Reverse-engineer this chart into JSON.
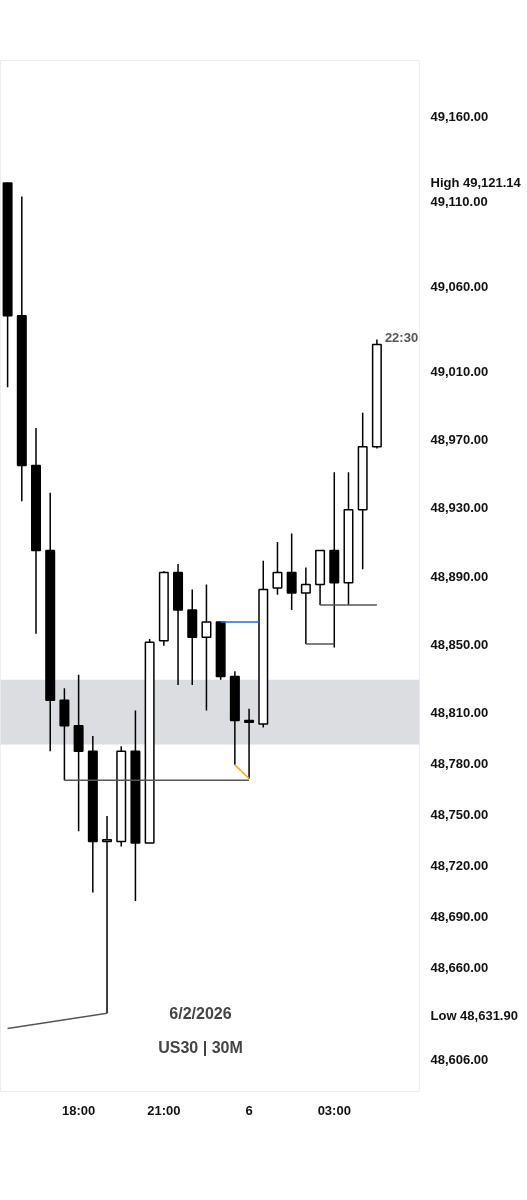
{
  "chart_data": {
    "type": "candlestick",
    "x": [
      "2026-02-05T15:30",
      "2026-02-05T16:00",
      "2026-02-05T16:30",
      "2026-02-05T17:00",
      "2026-02-05T17:30",
      "2026-02-05T18:00",
      "2026-02-05T18:30",
      "2026-02-05T19:00",
      "2026-02-05T19:30",
      "2026-02-05T20:00",
      "2026-02-05T20:30",
      "2026-02-05T21:00",
      "2026-02-05T21:30",
      "2026-02-05T22:00",
      "2026-02-05T22:30",
      "2026-02-05T23:00",
      "2026-02-05T23:30",
      "2026-02-06T00:00",
      "2026-02-06T00:30",
      "2026-02-06T01:00",
      "2026-02-06T01:30",
      "2026-02-06T02:00",
      "2026-02-06T02:30",
      "2026-02-06T03:00",
      "2026-02-06T03:30",
      "2026-02-06T04:00",
      "2026-02-06T04:30"
    ],
    "ohlc": [
      [
        49121,
        49121,
        49001,
        49043
      ],
      [
        49043,
        49113,
        48934,
        48955
      ],
      [
        48955,
        48977,
        48856,
        48905
      ],
      [
        48905,
        48939,
        48787,
        48817
      ],
      [
        48817,
        48824,
        48770,
        48802
      ],
      [
        48802,
        48832,
        48740,
        48787
      ],
      [
        48787,
        48796,
        48704,
        48734
      ],
      [
        48734,
        48749,
        48633,
        48735
      ],
      [
        48734,
        48790,
        48731,
        48787
      ],
      [
        48787,
        48811,
        48699,
        48733
      ],
      [
        48733,
        48853,
        48733,
        48851
      ],
      [
        48852,
        48893,
        48849,
        48892
      ],
      [
        48892,
        48897,
        48826,
        48870
      ],
      [
        48870,
        48882,
        48826,
        48854
      ],
      [
        48854,
        48885,
        48811,
        48863
      ],
      [
        48863,
        48863,
        48829,
        48831
      ],
      [
        48831,
        48834,
        48779,
        48805
      ],
      [
        48805,
        48812,
        48771,
        48804
      ],
      [
        48803,
        48899,
        48801,
        48882
      ],
      [
        48883,
        48910,
        48879,
        48892
      ],
      [
        48892,
        48915,
        48870,
        48880
      ],
      [
        48880,
        48895,
        48850,
        48885
      ],
      [
        48885,
        48905,
        48873,
        48905
      ],
      [
        48905,
        48951,
        48848,
        48886
      ],
      [
        48886,
        48951,
        48873,
        48929
      ],
      [
        48929,
        48986,
        48894,
        48966
      ],
      [
        48966,
        49029,
        48965,
        49026
      ]
    ],
    "series": [
      {
        "type": "line",
        "x": [
          "2026-02-05T15:30",
          "2026-02-05T19:00"
        ],
        "values": [
          48624,
          48633
        ],
        "color": "#555555"
      },
      {
        "type": "line",
        "x": [
          "2026-02-05T17:30",
          "2026-02-06T00:00"
        ],
        "values": [
          48770,
          48770
        ],
        "color": "#555555"
      },
      {
        "type": "line",
        "x": [
          "2026-02-05T23:00",
          "2026-02-06T00:20"
        ],
        "values": [
          48863,
          48863
        ],
        "color": "#2962ff"
      },
      {
        "type": "line",
        "x": [
          "2026-02-05T23:30",
          "2026-02-06T00:00"
        ],
        "values": [
          48779,
          48771
        ],
        "color": "#f5a623"
      },
      {
        "type": "line",
        "x": [
          "2026-02-06T02:00",
          "2026-02-06T03:00"
        ],
        "values": [
          48850,
          48850
        ],
        "color": "#555555"
      },
      {
        "type": "line",
        "x": [
          "2026-02-06T02:30",
          "2026-02-06T04:30"
        ],
        "values": [
          48873,
          48873
        ],
        "color": "#555555"
      }
    ],
    "bands": [
      {
        "axis": "y",
        "from": 48791,
        "to": 48829,
        "color": "#dcdde1"
      }
    ],
    "xlim": [
      "2026-02-05T15:15",
      "2026-02-06T06:00"
    ],
    "ylim": [
      48587,
      49193
    ],
    "xticks": [
      {
        "value": "2026-02-05T18:00",
        "label": "18:00"
      },
      {
        "value": "2026-02-05T21:00",
        "label": "21:00"
      },
      {
        "value": "2026-02-06T00:00",
        "label": "6"
      },
      {
        "value": "2026-02-06T03:00",
        "label": "03:00"
      }
    ],
    "yticks": [
      {
        "value": 49160,
        "label": "49,160.00"
      },
      {
        "value": 49121.14,
        "label": "High  49,121.14"
      },
      {
        "value": 49110,
        "label": "49,110.00"
      },
      {
        "value": 49060,
        "label": "49,060.00"
      },
      {
        "value": 49010,
        "label": "49,010.00"
      },
      {
        "value": 48970,
        "label": "48,970.00"
      },
      {
        "value": 48930,
        "label": "48,930.00"
      },
      {
        "value": 48890,
        "label": "48,890.00"
      },
      {
        "value": 48850,
        "label": "48,850.00"
      },
      {
        "value": 48810,
        "label": "48,810.00"
      },
      {
        "value": 48780,
        "label": "48,780.00"
      },
      {
        "value": 48750,
        "label": "48,750.00"
      },
      {
        "value": 48720,
        "label": "48,720.00"
      },
      {
        "value": 48690,
        "label": "48,690.00"
      },
      {
        "value": 48660,
        "label": "48,660.00"
      },
      {
        "value": 48631.9,
        "label": "Low  48,631.90"
      },
      {
        "value": 48606,
        "label": "48,606.00"
      }
    ],
    "annotations": [
      {
        "text": "22:30",
        "x": "2026-02-06T04:30",
        "y": 49026
      },
      "6/2/2026",
      "US30 | 30M"
    ],
    "grid": false
  }
}
